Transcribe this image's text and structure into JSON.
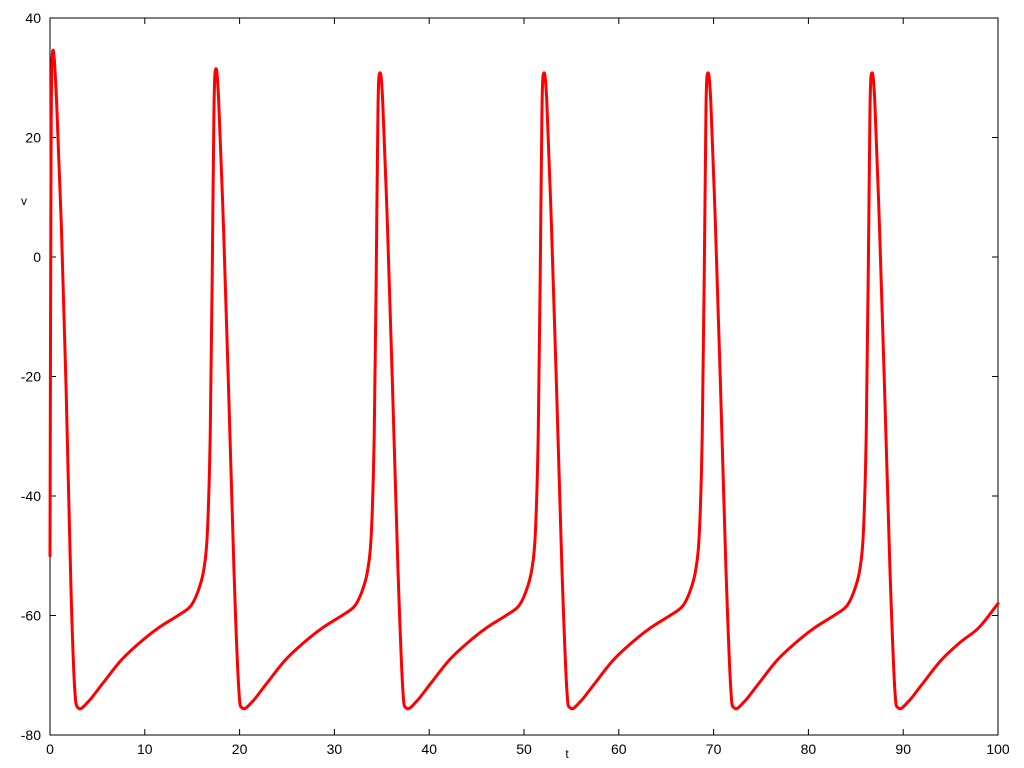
{
  "chart_data": {
    "type": "line",
    "title": "",
    "xlabel": "t",
    "ylabel": "v",
    "xlim": [
      0,
      100
    ],
    "ylim": [
      -80,
      40
    ],
    "xticks": [
      0,
      10,
      20,
      30,
      40,
      50,
      60,
      70,
      80,
      90,
      100
    ],
    "yticks": [
      -80,
      -60,
      -40,
      -20,
      0,
      20,
      40
    ],
    "grid": false,
    "legend": "none",
    "series": [
      {
        "color": "#ff0000",
        "points": [
          [
            0.0,
            -50.0
          ],
          [
            0.12,
            20.0
          ],
          [
            0.3,
            34.5
          ],
          [
            0.7,
            26.0
          ],
          [
            1.2,
            5.0
          ],
          [
            1.7,
            -22.0
          ],
          [
            2.2,
            -55.0
          ],
          [
            2.6,
            -72.0
          ],
          [
            3.0,
            -75.5
          ],
          [
            4.0,
            -74.5
          ],
          [
            5.5,
            -71.5
          ],
          [
            7.5,
            -67.5
          ],
          [
            9.5,
            -64.5
          ],
          [
            11.5,
            -62.0
          ],
          [
            13.5,
            -60.0
          ],
          [
            14.8,
            -58.5
          ],
          [
            15.6,
            -56.0
          ],
          [
            16.2,
            -52.5
          ],
          [
            16.6,
            -46.0
          ],
          [
            16.9,
            -30.0
          ],
          [
            17.1,
            -5.0
          ],
          [
            17.3,
            25.0
          ],
          [
            17.5,
            31.5
          ],
          [
            17.8,
            26.0
          ],
          [
            18.3,
            5.0
          ],
          [
            18.8,
            -20.0
          ],
          [
            19.4,
            -52.0
          ],
          [
            19.9,
            -72.0
          ],
          [
            20.3,
            -75.5
          ],
          [
            21.3,
            -74.5
          ],
          [
            22.8,
            -71.5
          ],
          [
            24.8,
            -67.5
          ],
          [
            26.8,
            -64.5
          ],
          [
            28.8,
            -62.0
          ],
          [
            30.8,
            -60.0
          ],
          [
            32.1,
            -58.5
          ],
          [
            32.9,
            -56.0
          ],
          [
            33.5,
            -52.5
          ],
          [
            33.9,
            -46.0
          ],
          [
            34.2,
            -30.0
          ],
          [
            34.4,
            -5.0
          ],
          [
            34.6,
            25.0
          ],
          [
            34.8,
            30.8
          ],
          [
            35.1,
            26.0
          ],
          [
            35.6,
            5.0
          ],
          [
            36.1,
            -20.0
          ],
          [
            36.7,
            -52.0
          ],
          [
            37.2,
            -72.0
          ],
          [
            37.6,
            -75.5
          ],
          [
            38.6,
            -74.5
          ],
          [
            40.1,
            -71.5
          ],
          [
            42.1,
            -67.5
          ],
          [
            44.1,
            -64.5
          ],
          [
            46.1,
            -62.0
          ],
          [
            48.1,
            -60.0
          ],
          [
            49.4,
            -58.5
          ],
          [
            50.2,
            -56.0
          ],
          [
            50.8,
            -52.5
          ],
          [
            51.2,
            -46.0
          ],
          [
            51.5,
            -30.0
          ],
          [
            51.7,
            -5.0
          ],
          [
            51.9,
            25.0
          ],
          [
            52.1,
            30.8
          ],
          [
            52.4,
            26.0
          ],
          [
            52.9,
            5.0
          ],
          [
            53.4,
            -20.0
          ],
          [
            54.0,
            -52.0
          ],
          [
            54.5,
            -72.0
          ],
          [
            54.9,
            -75.5
          ],
          [
            55.9,
            -74.5
          ],
          [
            57.4,
            -71.5
          ],
          [
            59.4,
            -67.5
          ],
          [
            61.4,
            -64.5
          ],
          [
            63.4,
            -62.0
          ],
          [
            65.4,
            -60.0
          ],
          [
            66.7,
            -58.5
          ],
          [
            67.5,
            -56.0
          ],
          [
            68.1,
            -52.5
          ],
          [
            68.5,
            -46.0
          ],
          [
            68.8,
            -30.0
          ],
          [
            69.0,
            -5.0
          ],
          [
            69.2,
            25.0
          ],
          [
            69.4,
            30.8
          ],
          [
            69.7,
            26.0
          ],
          [
            70.2,
            5.0
          ],
          [
            70.7,
            -20.0
          ],
          [
            71.3,
            -52.0
          ],
          [
            71.8,
            -72.0
          ],
          [
            72.2,
            -75.5
          ],
          [
            73.2,
            -74.5
          ],
          [
            74.7,
            -71.5
          ],
          [
            76.7,
            -67.5
          ],
          [
            78.7,
            -64.5
          ],
          [
            80.7,
            -62.0
          ],
          [
            82.7,
            -60.0
          ],
          [
            84.0,
            -58.5
          ],
          [
            84.8,
            -56.0
          ],
          [
            85.4,
            -52.5
          ],
          [
            85.8,
            -46.0
          ],
          [
            86.1,
            -30.0
          ],
          [
            86.3,
            -5.0
          ],
          [
            86.5,
            25.0
          ],
          [
            86.7,
            30.8
          ],
          [
            87.0,
            26.0
          ],
          [
            87.5,
            5.0
          ],
          [
            88.0,
            -20.0
          ],
          [
            88.6,
            -52.0
          ],
          [
            89.1,
            -72.0
          ],
          [
            89.5,
            -75.5
          ],
          [
            90.5,
            -74.5
          ],
          [
            92.0,
            -71.5
          ],
          [
            94.0,
            -67.5
          ],
          [
            96.0,
            -64.5
          ],
          [
            98.0,
            -62.0
          ],
          [
            100.0,
            -58.0
          ]
        ]
      }
    ]
  }
}
